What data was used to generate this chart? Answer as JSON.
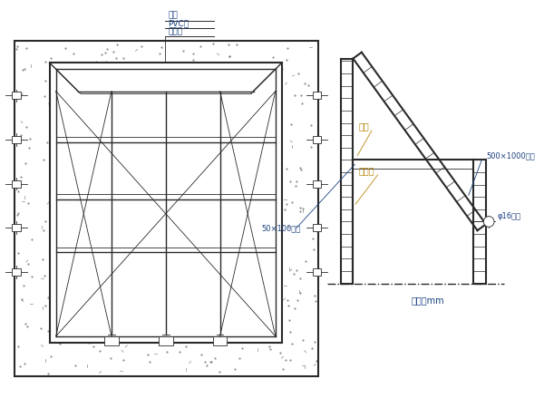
{
  "bg_color": "#ffffff",
  "line_color": "#2a2a2a",
  "label_color_blue": "#1a4080",
  "label_color_orange": "#b8860b",
  "title_labels": [
    "混凝土",
    "PVC层",
    "木模"
  ],
  "unit_label": "单位：mm",
  "label_500": "500×1000木模",
  "label_bianguan": "边管",
  "label_chuankongban": "穿孔板",
  "label_50x100": "50×100方木",
  "label_luo": "φ16螺栌"
}
